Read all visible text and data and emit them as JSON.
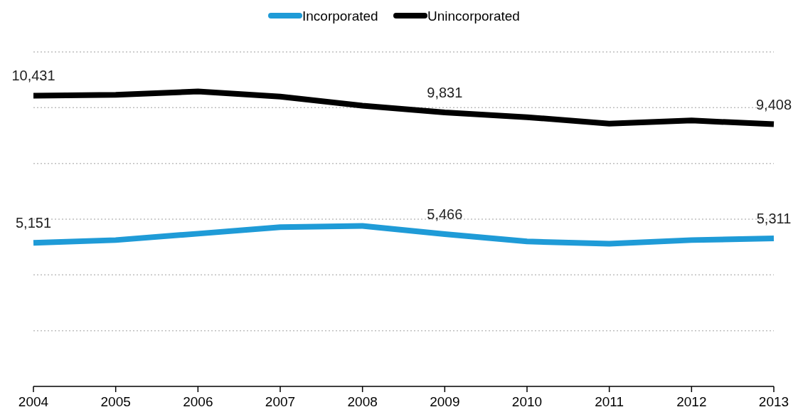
{
  "chart_data": {
    "type": "line",
    "categories": [
      "2004",
      "2005",
      "2006",
      "2007",
      "2008",
      "2009",
      "2010",
      "2011",
      "2012",
      "2013"
    ],
    "series": [
      {
        "name": "Incorporated",
        "color": "#1f9bd7",
        "values": [
          5151,
          5250,
          5480,
          5710,
          5760,
          5466,
          5200,
          5120,
          5250,
          5311
        ],
        "value_labels": [
          "5,151",
          null,
          null,
          null,
          null,
          "5,466",
          null,
          null,
          null,
          "5,311"
        ]
      },
      {
        "name": "Unincorporated",
        "color": "#000000",
        "values": [
          10431,
          10460,
          10580,
          10400,
          10070,
          9831,
          9660,
          9430,
          9540,
          9408
        ],
        "value_labels": [
          "10,431",
          null,
          null,
          null,
          null,
          "9,831",
          null,
          null,
          null,
          "9,408"
        ]
      }
    ],
    "ylim": [
      0,
      12000
    ],
    "yticks": [
      {
        "value": 0,
        "label": null
      },
      {
        "value": 2000,
        "label": null
      },
      {
        "value": 4000,
        "label": null
      },
      {
        "value": 6000,
        "label": null
      },
      {
        "value": 8000,
        "label": null
      },
      {
        "value": 10000,
        "label": null
      },
      {
        "value": 12000,
        "label": null
      }
    ],
    "tick_labels": "x",
    "grid": "y",
    "legend": "top",
    "marker": "none",
    "line_style": "solid"
  }
}
